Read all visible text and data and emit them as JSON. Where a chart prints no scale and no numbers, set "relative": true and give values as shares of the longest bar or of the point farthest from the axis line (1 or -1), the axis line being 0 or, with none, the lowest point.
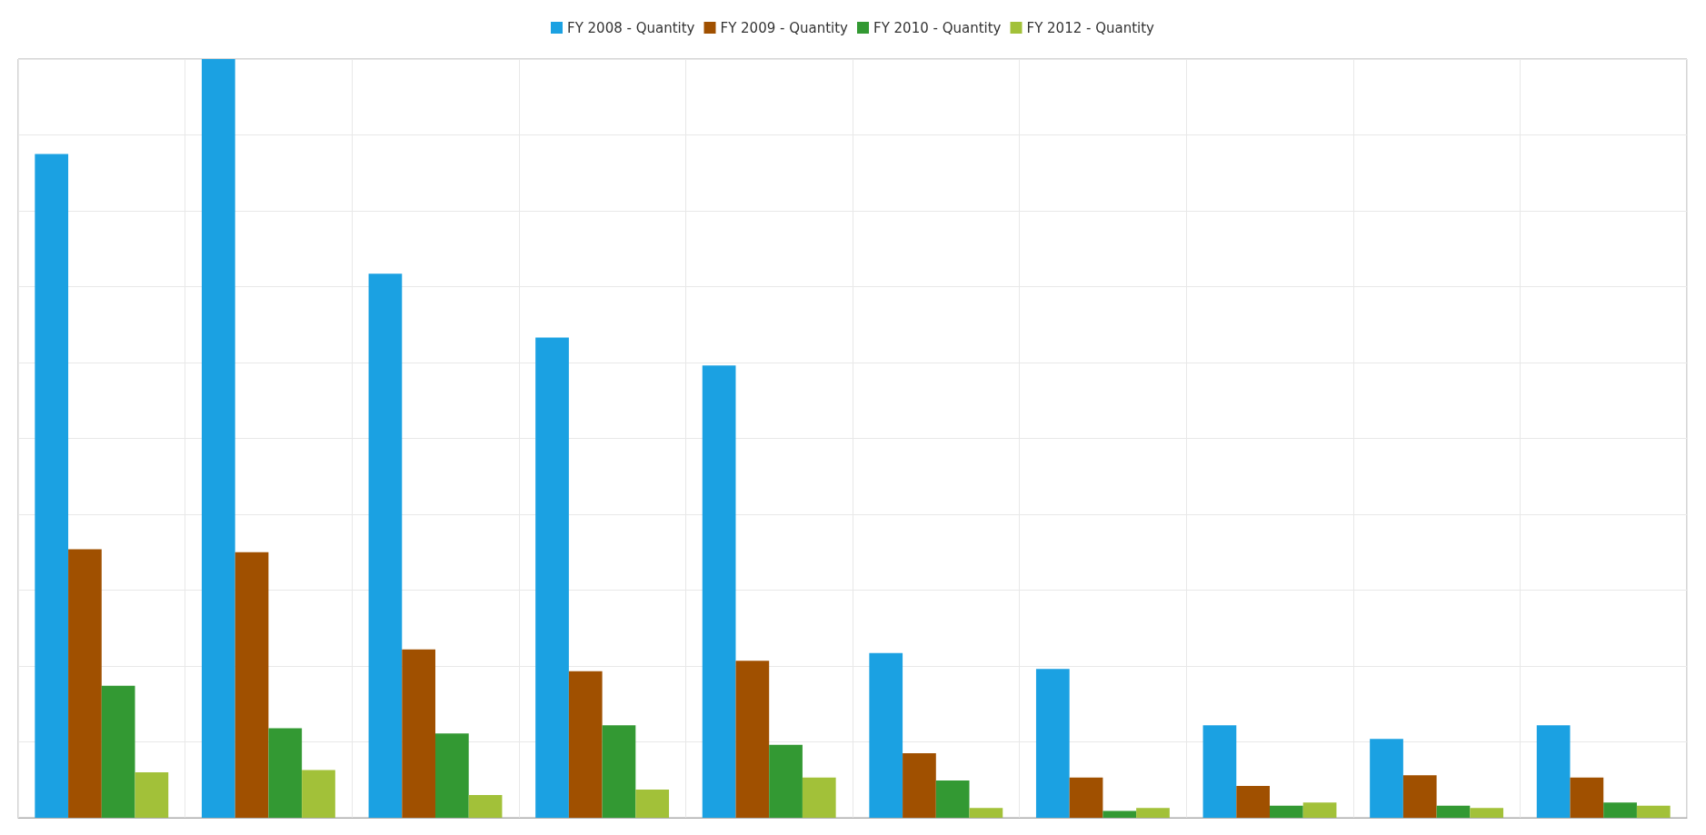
{
  "chart_data": {
    "type": "bar",
    "relative": true,
    "grid": true,
    "legend": "top",
    "categories": [
      null,
      null,
      null,
      null,
      null,
      null,
      null,
      null,
      null,
      null
    ],
    "series": [
      {
        "name": "FY 2008 - Quantity",
        "color": "#1ba1e2",
        "values": [
          0.875,
          1,
          0.717,
          0.633,
          0.596,
          0.217,
          0.196,
          0.122,
          0.104,
          0.122
        ]
      },
      {
        "name": "FY 2009 - Quantity",
        "color": "#a05000",
        "values": [
          0.354,
          0.35,
          0.222,
          0.193,
          0.207,
          0.085,
          0.053,
          0.042,
          0.056,
          0.053
        ]
      },
      {
        "name": "FY 2010 - Quantity",
        "color": "#339933",
        "values": [
          0.174,
          0.118,
          0.111,
          0.122,
          0.096,
          0.049,
          0.009,
          0.016,
          0.016,
          0.02
        ]
      },
      {
        "name": "FY 2012 - Quantity",
        "color": "#a2c139",
        "values": [
          0.06,
          0.063,
          0.03,
          0.037,
          0.053,
          0.013,
          0.013,
          0.02,
          0.013,
          0.016
        ]
      }
    ]
  }
}
